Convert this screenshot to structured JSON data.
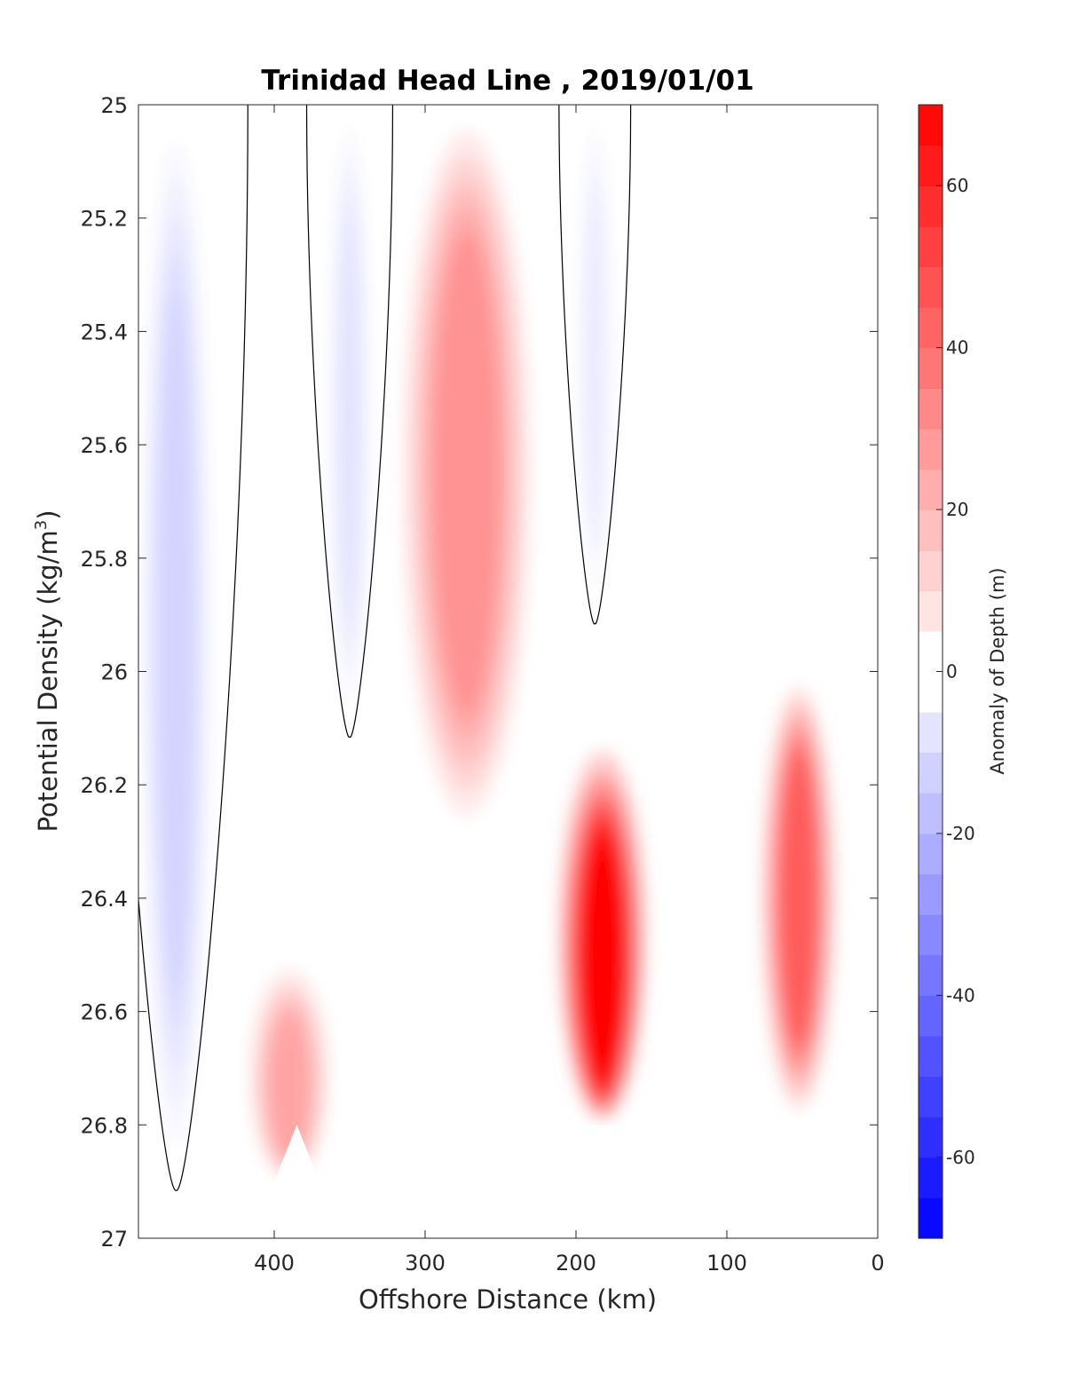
{
  "chart_data": {
    "type": "heatmap",
    "subtype": "filled-contour section",
    "title": "Trinidad Head Line , 2019/01/01",
    "xlabel": "Offshore Distance (km)",
    "ylabel": "Potential Density (kg/m",
    "ylabel_superscript": "3",
    "ylabel_close": ")",
    "colorbar_label": "Anomaly of Depth (m)",
    "x_reversed": true,
    "y_reversed": true,
    "xlim": [
      0,
      490
    ],
    "ylim": [
      25,
      27
    ],
    "x_ticks": [
      400,
      300,
      200,
      100,
      0
    ],
    "x_tick_labels": [
      "400",
      "300",
      "200",
      "100",
      "0"
    ],
    "y_ticks": [
      25,
      25.2,
      25.4,
      25.6,
      25.8,
      26,
      26.2,
      26.4,
      26.6,
      26.8,
      27
    ],
    "y_tick_labels": [
      "25",
      "25.2",
      "25.4",
      "25.6",
      "25.8",
      "26",
      "26.2",
      "26.4",
      "26.6",
      "26.8",
      "27"
    ],
    "colorbar_range": [
      -70,
      70
    ],
    "colorbar_step": 5,
    "colorbar_ticks": [
      60,
      40,
      20,
      0,
      -20,
      -40,
      -60
    ],
    "colorbar_tick_labels": [
      "60",
      "40",
      "20",
      "0",
      "-20",
      "-40",
      "-60"
    ],
    "colormap": {
      "negative": "#0000ff",
      "zero": "#ffffff",
      "positive": "#ff0000"
    },
    "zero_contour_color": "#000000",
    "grid": false,
    "anomaly_features": [
      {
        "kind": "negative",
        "x_range": [
          440,
          490
        ],
        "y_range": [
          25.0,
          26.9
        ],
        "peak_anomaly": -12
      },
      {
        "kind": "negative",
        "x_range": [
          335,
          365
        ],
        "y_range": [
          25.0,
          26.1
        ],
        "peak_anomaly": -8
      },
      {
        "kind": "negative",
        "x_range": [
          175,
          200
        ],
        "y_range": [
          25.0,
          25.9
        ],
        "peak_anomaly": -6
      },
      {
        "kind": "positive",
        "x_range": [
          225,
          320
        ],
        "y_range": [
          25.0,
          26.3
        ],
        "peak_anomaly": 30
      },
      {
        "kind": "positive",
        "x_range": [
          150,
          215
        ],
        "y_range": [
          26.1,
          26.8
        ],
        "peak_anomaly": 70
      },
      {
        "kind": "positive",
        "x_range": [
          25,
          80
        ],
        "y_range": [
          26.0,
          26.8
        ],
        "peak_anomaly": 45
      },
      {
        "kind": "positive",
        "x_range": [
          360,
          420
        ],
        "y_range": [
          26.5,
          26.9
        ],
        "peak_anomaly": 25
      }
    ],
    "data_bottom_density": {
      "x": [
        490,
        400,
        385,
        370,
        210,
        200,
        160,
        150,
        70,
        60,
        30
      ],
      "y": [
        26.9,
        26.9,
        26.8,
        26.9,
        26.9,
        26.8,
        26.8,
        26.9,
        26.9,
        26.8,
        26.8
      ]
    }
  }
}
